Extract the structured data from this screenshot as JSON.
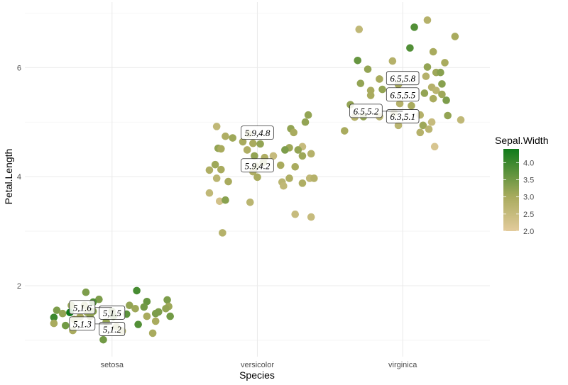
{
  "chart_data": {
    "type": "scatter",
    "xlabel": "Species",
    "ylabel": "Petal.Length",
    "categories": [
      "setosa",
      "versicolor",
      "virginica"
    ],
    "ylim": [
      0.7,
      7.2
    ],
    "yticks": [
      2,
      4,
      6
    ],
    "grid": true,
    "legend": {
      "title": "Sepal.Width",
      "position": "right",
      "ticks": [
        "2.0",
        "2.5",
        "3.0",
        "3.5",
        "4.0"
      ],
      "range": [
        2.0,
        4.4
      ],
      "color_low": "#E3CB9C",
      "color_mid": "#A9AB5E",
      "color_high": "#107A1A"
    },
    "points_note_fields": [
      "x_jittered",
      "Petal.Length",
      "Sepal.Width"
    ],
    "points": [
      [
        0.82,
        1.88,
        3.4
      ],
      [
        1.17,
        1.91,
        3.9
      ],
      [
        0.91,
        1.75,
        3.4
      ],
      [
        0.87,
        1.7,
        3.8
      ],
      [
        0.72,
        1.64,
        3.2
      ],
      [
        0.81,
        1.64,
        3.0
      ],
      [
        0.62,
        1.55,
        3.4
      ],
      [
        0.66,
        1.49,
        3.2
      ],
      [
        0.71,
        1.51,
        4.4
      ],
      [
        0.83,
        1.51,
        3.1
      ],
      [
        0.87,
        1.53,
        3.3
      ],
      [
        0.85,
        1.44,
        3.2
      ],
      [
        0.78,
        1.43,
        3.0
      ],
      [
        0.74,
        1.38,
        3.0
      ],
      [
        0.6,
        1.42,
        4.0
      ],
      [
        0.6,
        1.31,
        3.0
      ],
      [
        0.68,
        1.27,
        3.5
      ],
      [
        0.73,
        1.18,
        3.0
      ],
      [
        0.94,
        1.01,
        3.5
      ],
      [
        1.1,
        1.48,
        3.7
      ],
      [
        1.12,
        1.64,
        3.2
      ],
      [
        1.16,
        1.58,
        3.1
      ],
      [
        1.24,
        1.71,
        3.6
      ],
      [
        1.22,
        1.61,
        3.5
      ],
      [
        1.38,
        1.74,
        3.4
      ],
      [
        1.39,
        1.62,
        3.1
      ],
      [
        1.37,
        1.58,
        3.2
      ],
      [
        1.32,
        1.52,
        3.4
      ],
      [
        1.3,
        1.49,
        3.4
      ],
      [
        1.4,
        1.44,
        3.5
      ],
      [
        1.24,
        1.44,
        3.0
      ],
      [
        1.3,
        1.35,
        3.0
      ],
      [
        1.18,
        1.29,
        3.8
      ],
      [
        1.28,
        1.13,
        3.0
      ],
      [
        1.07,
        1.17,
        2.9
      ],
      [
        1.0,
        1.53,
        3.4
      ],
      [
        0.96,
        1.34,
        3.2
      ],
      [
        1.03,
        1.25,
        3.1
      ],
      [
        1.01,
        1.44,
        3.5
      ],
      [
        2.35,
        5.13,
        3.2
      ],
      [
        2.33,
        5.0,
        3.2
      ],
      [
        1.72,
        4.92,
        2.6
      ],
      [
        2.23,
        4.88,
        3.2
      ],
      [
        2.25,
        4.81,
        3.0
      ],
      [
        1.78,
        4.74,
        2.9
      ],
      [
        1.83,
        4.71,
        3.1
      ],
      [
        1.9,
        4.64,
        3.0
      ],
      [
        1.97,
        4.61,
        3.0
      ],
      [
        2.02,
        4.6,
        3.2
      ],
      [
        1.73,
        4.52,
        3.2
      ],
      [
        1.75,
        4.51,
        3.0
      ],
      [
        1.93,
        4.49,
        2.9
      ],
      [
        2.22,
        4.53,
        3.1
      ],
      [
        2.19,
        4.49,
        3.4
      ],
      [
        2.31,
        4.55,
        2.5
      ],
      [
        2.28,
        4.49,
        3.2
      ],
      [
        2.37,
        4.42,
        2.8
      ],
      [
        2.31,
        4.38,
        3.1
      ],
      [
        1.98,
        4.38,
        3.2
      ],
      [
        2.05,
        4.35,
        2.9
      ],
      [
        2.11,
        4.38,
        2.5
      ],
      [
        1.71,
        4.22,
        3.1
      ],
      [
        1.67,
        4.12,
        2.9
      ],
      [
        1.75,
        4.13,
        3.0
      ],
      [
        2.16,
        4.21,
        3.0
      ],
      [
        2.26,
        4.18,
        3.0
      ],
      [
        1.97,
        4.09,
        2.9
      ],
      [
        2.0,
        3.99,
        3.0
      ],
      [
        1.72,
        3.97,
        2.7
      ],
      [
        1.8,
        3.91,
        3.0
      ],
      [
        2.22,
        3.97,
        2.9
      ],
      [
        2.17,
        3.9,
        2.7
      ],
      [
        2.18,
        3.83,
        2.6
      ],
      [
        2.31,
        3.88,
        2.9
      ],
      [
        2.36,
        3.97,
        2.6
      ],
      [
        2.39,
        3.97,
        2.8
      ],
      [
        1.67,
        3.7,
        2.6
      ],
      [
        1.74,
        3.55,
        2.3
      ],
      [
        1.78,
        3.57,
        3.3
      ],
      [
        1.95,
        3.53,
        2.7
      ],
      [
        2.26,
        3.31,
        2.5
      ],
      [
        2.37,
        3.26,
        2.5
      ],
      [
        1.76,
        2.97,
        2.8
      ],
      [
        1.94,
        4.78,
        2.9
      ],
      [
        1.99,
        4.19,
        3.0
      ],
      [
        2.04,
        4.26,
        3.0
      ],
      [
        3.17,
        6.87,
        2.8
      ],
      [
        3.08,
        6.74,
        3.8
      ],
      [
        2.7,
        6.7,
        2.6
      ],
      [
        3.36,
        6.57,
        3.0
      ],
      [
        3.05,
        6.36,
        3.8
      ],
      [
        3.21,
        6.29,
        3.0
      ],
      [
        2.69,
        6.13,
        3.6
      ],
      [
        2.93,
        6.12,
        2.8
      ],
      [
        3.29,
        6.09,
        3.0
      ],
      [
        2.76,
        5.97,
        3.2
      ],
      [
        3.17,
        6.01,
        3.2
      ],
      [
        3.23,
        5.91,
        3.1
      ],
      [
        3.26,
        5.91,
        3.3
      ],
      [
        3.16,
        5.84,
        2.8
      ],
      [
        2.84,
        5.79,
        3.0
      ],
      [
        2.71,
        5.71,
        3.2
      ],
      [
        3.27,
        5.7,
        3.3
      ],
      [
        3.2,
        5.64,
        2.8
      ],
      [
        3.23,
        5.58,
        2.7
      ],
      [
        2.78,
        5.58,
        3.0
      ],
      [
        2.86,
        5.6,
        3.2
      ],
      [
        2.78,
        5.49,
        3.0
      ],
      [
        3.15,
        5.53,
        3.2
      ],
      [
        3.27,
        5.51,
        3.1
      ],
      [
        3.21,
        5.43,
        3.0
      ],
      [
        3.3,
        5.4,
        3.4
      ],
      [
        2.64,
        5.32,
        3.2
      ],
      [
        2.98,
        5.34,
        2.8
      ],
      [
        2.67,
        5.09,
        2.8
      ],
      [
        2.73,
        5.1,
        3.2
      ],
      [
        2.84,
        5.1,
        2.7
      ],
      [
        3.12,
        5.13,
        2.8
      ],
      [
        3.31,
        5.12,
        3.2
      ],
      [
        3.4,
        5.04,
        2.6
      ],
      [
        2.97,
        4.94,
        2.7
      ],
      [
        3.14,
        4.94,
        3.1
      ],
      [
        3.2,
        5.0,
        2.5
      ],
      [
        3.18,
        4.87,
        2.7
      ],
      [
        3.12,
        4.81,
        2.8
      ],
      [
        2.6,
        4.84,
        3.0
      ],
      [
        3.22,
        4.55,
        2.2
      ],
      [
        2.97,
        5.69,
        3.0
      ],
      [
        2.94,
        5.17,
        2.8
      ],
      [
        3.06,
        5.3,
        3.0
      ]
    ],
    "labels": [
      {
        "species_index": 1,
        "y": 1.5,
        "text": "5,1.5"
      },
      {
        "species_index": 1,
        "y": 1.6,
        "text": "5,1.6"
      },
      {
        "species_index": 1,
        "y": 1.2,
        "text": "5,1.2"
      },
      {
        "species_index": 1,
        "y": 1.3,
        "text": "5,1.3"
      },
      {
        "species_index": 2,
        "y": 4.8,
        "text": "5.9,4.8"
      },
      {
        "species_index": 2,
        "y": 4.2,
        "text": "5.9,4.2"
      },
      {
        "species_index": 3,
        "y": 5.8,
        "text": "6.5,5.8"
      },
      {
        "species_index": 3,
        "y": 5.5,
        "text": "6.5,5.5"
      },
      {
        "species_index": 3,
        "y": 5.1,
        "text": "6.3,5.1"
      },
      {
        "species_index": 3,
        "y": 5.2,
        "text": "6.5,5.2"
      }
    ]
  }
}
